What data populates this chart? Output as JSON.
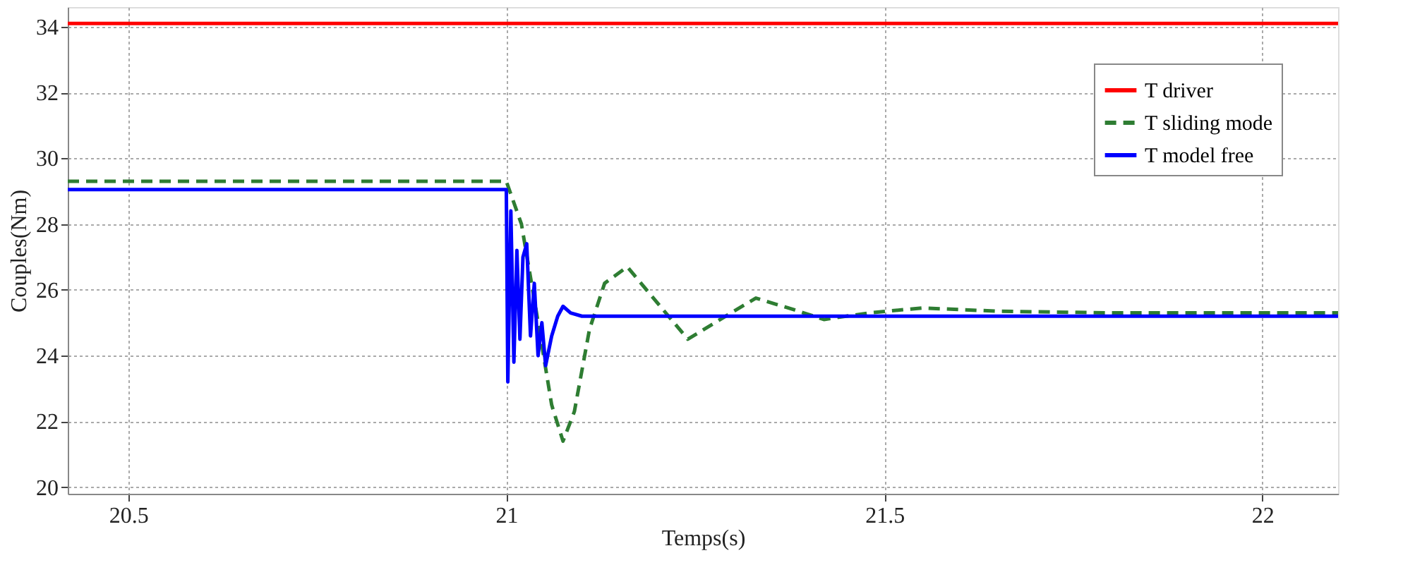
{
  "chart_data": {
    "type": "line",
    "xlabel": "Temps(s)",
    "ylabel": "Couples(Nm)",
    "xlim": [
      20.42,
      22.1
    ],
    "ylim": [
      19.8,
      34.6
    ],
    "xticks": [
      20.5,
      21,
      21.5,
      22
    ],
    "yticks": [
      20,
      22,
      24,
      26,
      28,
      30,
      32,
      34
    ],
    "grid": true,
    "legend": "top right",
    "line_style": "solid",
    "series": [
      {
        "name": "T driver",
        "color": "#ff0000",
        "x": [
          20.42,
          22.1
        ],
        "values": [
          34.1,
          34.1
        ]
      },
      {
        "name": "T sliding mode",
        "color": "#2e7d32",
        "line_style": "dashed",
        "x": [
          20.42,
          21.0,
          21.02,
          21.04,
          21.06,
          21.075,
          21.09,
          21.11,
          21.13,
          21.16,
          21.2,
          21.24,
          21.29,
          21.33,
          21.38,
          21.42,
          21.48,
          21.55,
          21.65,
          21.8,
          22.1
        ],
        "values": [
          29.3,
          29.3,
          28.0,
          25.3,
          22.5,
          21.4,
          22.3,
          24.8,
          26.2,
          26.7,
          25.6,
          24.5,
          25.2,
          25.75,
          25.4,
          25.1,
          25.3,
          25.45,
          25.35,
          25.3,
          25.3
        ]
      },
      {
        "name": "T model free",
        "color": "#0000ff",
        "x": [
          20.42,
          21.0,
          21.002,
          21.006,
          21.01,
          21.014,
          21.018,
          21.022,
          21.027,
          21.032,
          21.037,
          21.042,
          21.047,
          21.052,
          21.06,
          21.068,
          21.075,
          21.085,
          21.1,
          21.2,
          22.1
        ],
        "values": [
          29.05,
          29.05,
          23.2,
          28.4,
          23.8,
          27.2,
          24.5,
          27.0,
          27.4,
          24.6,
          26.2,
          24.0,
          25.0,
          23.7,
          24.6,
          25.2,
          25.5,
          25.3,
          25.2,
          25.2,
          25.2
        ]
      }
    ]
  }
}
